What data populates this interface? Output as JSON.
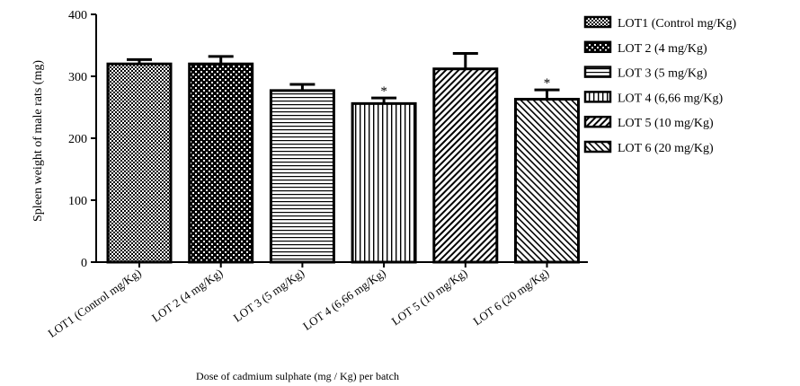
{
  "chart_data": {
    "type": "bar",
    "title": "",
    "xlabel": "Dose of cadmium sulphate (mg / Kg) per batch",
    "ylabel": "Spleen weight of male rats (mg)",
    "ylim": [
      0,
      400
    ],
    "yticks": [
      "0",
      "100",
      "200",
      "300",
      "400"
    ],
    "categories": [
      "LOT1 (Control mg/Kg)",
      "LOT 2 (4 mg/Kg)",
      "LOT 3 (5 mg/Kg)",
      "LOT 4 (6,66 mg/Kg)",
      "LOT 5 (10 mg/Kg)",
      "LOT 6 (20 mg/Kg)"
    ],
    "values": [
      320,
      320,
      277,
      256,
      312,
      263
    ],
    "errors": [
      7,
      12,
      10,
      9,
      25,
      15
    ],
    "annotations": [
      "",
      "",
      "",
      "*",
      "",
      "*"
    ],
    "patterns": [
      "dense-checker",
      "checker",
      "horizontal-lines",
      "vertical-lines",
      "diagonal-right",
      "diagonal-left"
    ],
    "legend": {
      "position": "right",
      "entries": [
        "LOT1 (Control mg/Kg)",
        "LOT 2 (4 mg/Kg)",
        "LOT 3 (5 mg/Kg)",
        "LOT 4 (6,66 mg/Kg)",
        "LOT 5 (10 mg/Kg)",
        "LOT 6 (20 mg/Kg)"
      ]
    }
  }
}
